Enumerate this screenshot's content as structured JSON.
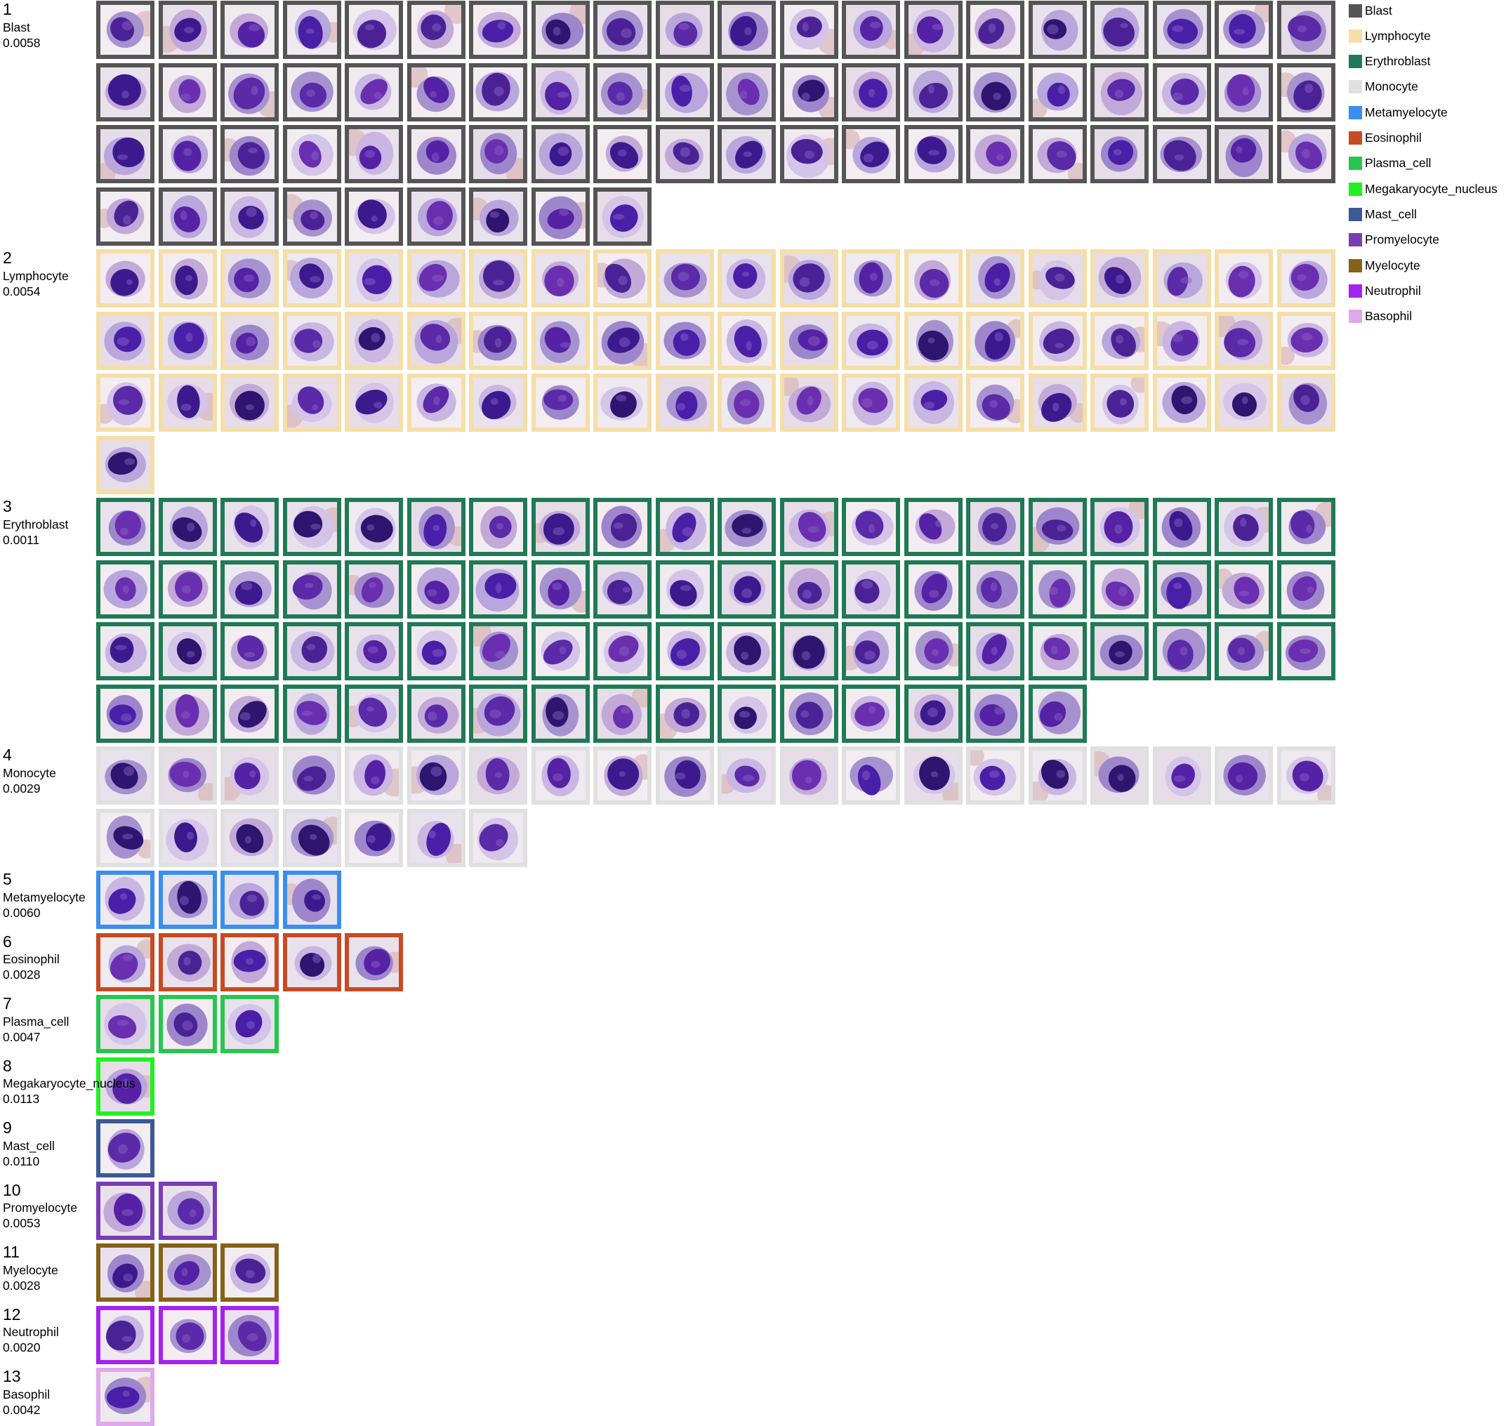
{
  "legend": [
    {
      "label": "Blast",
      "color": "#555555"
    },
    {
      "label": "Lymphocyte",
      "color": "#f5dea8"
    },
    {
      "label": "Erythroblast",
      "color": "#1f7a55"
    },
    {
      "label": "Monocyte",
      "color": "#e0e0e0"
    },
    {
      "label": "Metamyelocyte",
      "color": "#3a8ef0"
    },
    {
      "label": "Eosinophil",
      "color": "#c84a22"
    },
    {
      "label": "Plasma_cell",
      "color": "#27c64e"
    },
    {
      "label": "Megakaryocyte_nucleus",
      "color": "#22f022"
    },
    {
      "label": "Mast_cell",
      "color": "#3a5a96"
    },
    {
      "label": "Promyelocyte",
      "color": "#7a3cb4"
    },
    {
      "label": "Myelocyte",
      "color": "#856218"
    },
    {
      "label": "Neutrophil",
      "color": "#a622f0"
    },
    {
      "label": "Basophil",
      "color": "#e0a8ec"
    }
  ],
  "groups": [
    {
      "index": "1",
      "name": "Blast",
      "score": "0.0058",
      "count": 69,
      "color": "#555555",
      "tile_icon": "cell-image"
    },
    {
      "index": "2",
      "name": "Lymphocyte",
      "score": "0.0054",
      "count": 61,
      "color": "#f5dea8",
      "tile_icon": "cell-image"
    },
    {
      "index": "3",
      "name": "Erythroblast",
      "score": "0.0011",
      "count": 76,
      "color": "#1f7a55",
      "tile_icon": "cell-image"
    },
    {
      "index": "4",
      "name": "Monocyte",
      "score": "0.0029",
      "count": 27,
      "color": "#e0e0e0",
      "tile_icon": "cell-image"
    },
    {
      "index": "5",
      "name": "Metamyelocyte",
      "score": "0.0060",
      "count": 4,
      "color": "#3a8ef0",
      "tile_icon": "cell-image"
    },
    {
      "index": "6",
      "name": "Eosinophil",
      "score": "0.0028",
      "count": 5,
      "color": "#c84a22",
      "tile_icon": "cell-image"
    },
    {
      "index": "7",
      "name": "Plasma_cell",
      "score": "0.0047",
      "count": 3,
      "color": "#27c64e",
      "tile_icon": "cell-image"
    },
    {
      "index": "8",
      "name": "Megakaryocyte_nucleus",
      "score": "0.0113",
      "count": 1,
      "color": "#22f022",
      "tile_icon": "cell-image"
    },
    {
      "index": "9",
      "name": "Mast_cell",
      "score": "0.0110",
      "count": 1,
      "color": "#3a5a96",
      "tile_icon": "cell-image"
    },
    {
      "index": "10",
      "name": "Promyelocyte",
      "score": "0.0053",
      "count": 2,
      "color": "#7a3cb4",
      "tile_icon": "cell-image"
    },
    {
      "index": "11",
      "name": "Myelocyte",
      "score": "0.0028",
      "count": 3,
      "color": "#856218",
      "tile_icon": "cell-image"
    },
    {
      "index": "12",
      "name": "Neutrophil",
      "score": "0.0020",
      "count": 3,
      "color": "#a622f0",
      "tile_icon": "cell-image"
    },
    {
      "index": "13",
      "name": "Basophil",
      "score": "0.0042",
      "count": 1,
      "color": "#e0a8ec",
      "tile_icon": "cell-image"
    }
  ]
}
